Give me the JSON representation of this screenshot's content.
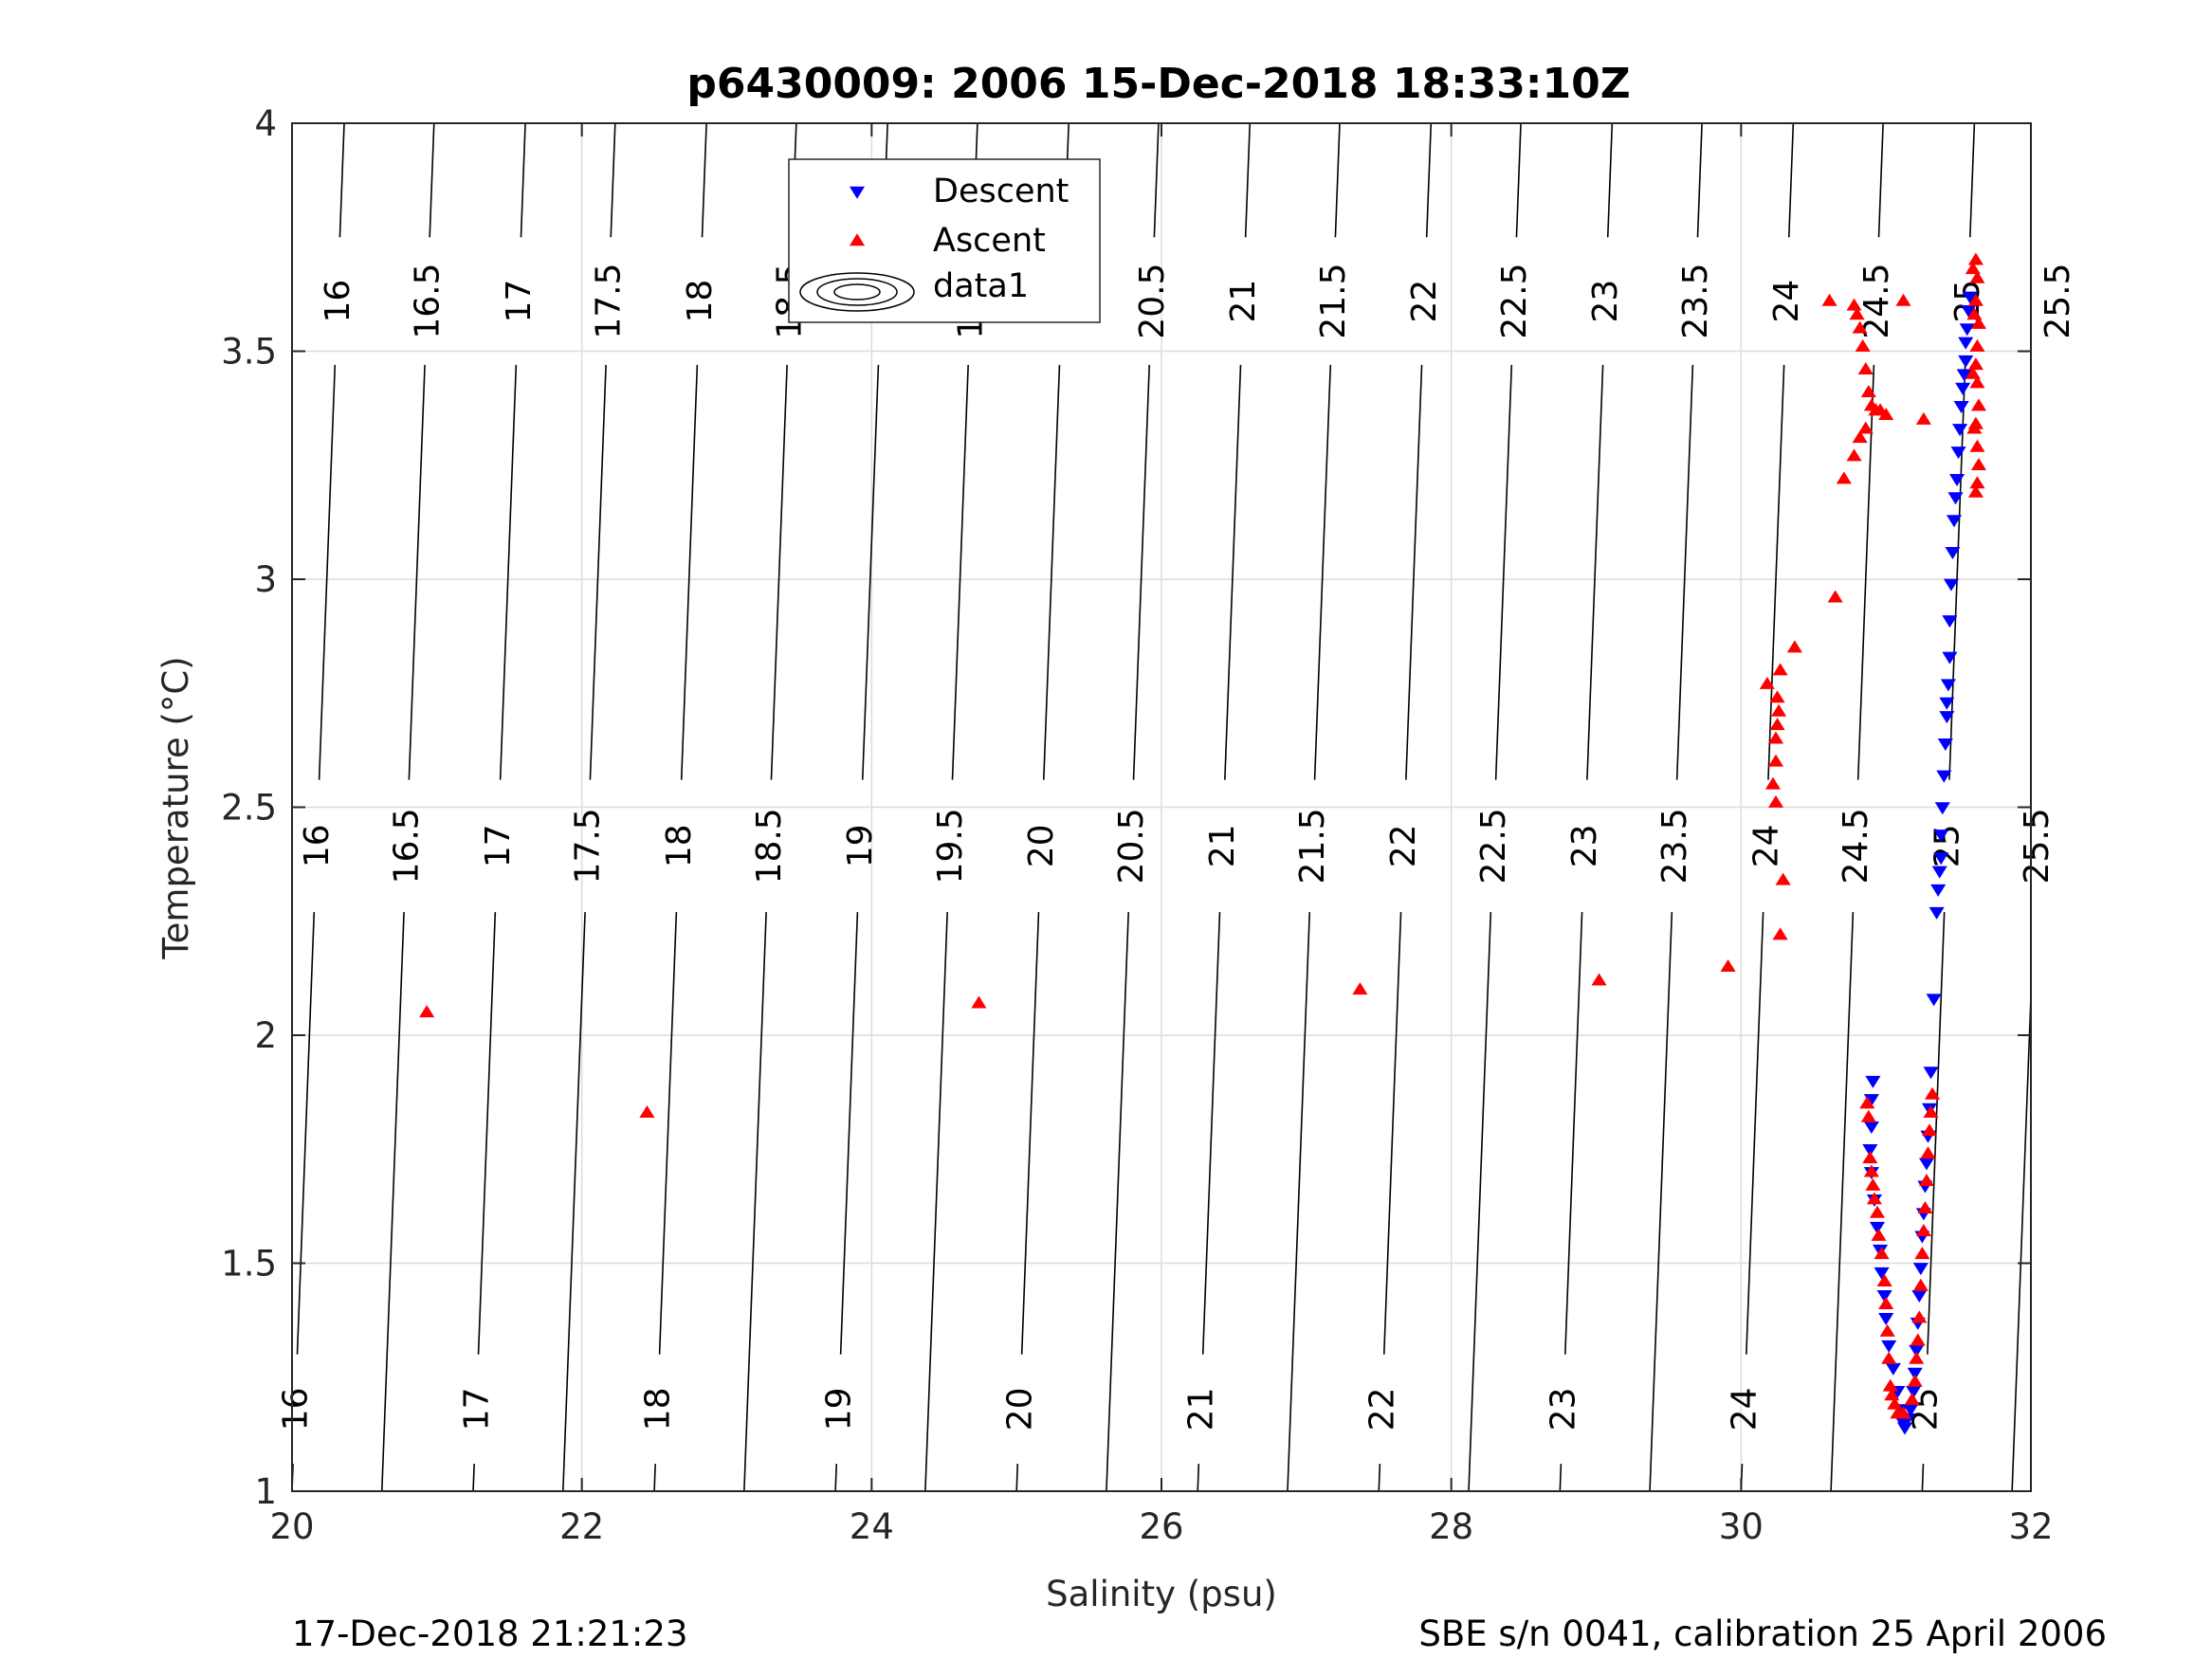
{
  "chart_data": {
    "type": "scatter",
    "title": "p6430009:  2006 15-Dec-2018 18:33:10Z",
    "xlabel": "Salinity (psu)",
    "ylabel": "Temperature (°C)",
    "xlim": [
      20,
      32
    ],
    "ylim": [
      1,
      4
    ],
    "xticks": [
      "20",
      "22",
      "24",
      "26",
      "28",
      "30",
      "32"
    ],
    "yticks": [
      "1",
      "1.5",
      "2",
      "2.5",
      "3",
      "3.5",
      "4"
    ],
    "grid": true,
    "legend_position": "top-center",
    "legend": [
      {
        "label": "Descent",
        "color": "#0000ff",
        "marker": "triangle-down"
      },
      {
        "label": "Ascent",
        "color": "#ff0000",
        "marker": "triangle-up"
      },
      {
        "label": "data1",
        "color": "#000000",
        "marker": "contour"
      }
    ],
    "density_contours": {
      "labels": [
        "16",
        "16.5",
        "17",
        "17.5",
        "18",
        "18.5",
        "19",
        "19.5",
        "20",
        "20.5",
        "21",
        "21.5",
        "22",
        "22.5",
        "23",
        "23.5",
        "24",
        "24.5",
        "25",
        "25.5"
      ],
      "bottom_salinity": [
        20.0,
        20.62,
        21.25,
        21.87,
        22.5,
        23.12,
        23.75,
        24.37,
        25.0,
        25.62,
        26.25,
        26.87,
        27.5,
        28.12,
        28.75,
        29.37,
        30.0,
        30.62,
        31.25,
        31.87
      ],
      "slope_psu_per_degC": 0.12
    },
    "series": [
      {
        "name": "Descent",
        "color": "#0000ff",
        "marker": "triangle-down",
        "points": [
          [
            31.58,
            3.62
          ],
          [
            31.57,
            3.59
          ],
          [
            31.56,
            3.55
          ],
          [
            31.55,
            3.52
          ],
          [
            31.55,
            3.48
          ],
          [
            31.54,
            3.45
          ],
          [
            31.53,
            3.42
          ],
          [
            31.52,
            3.38
          ],
          [
            31.51,
            3.33
          ],
          [
            31.5,
            3.28
          ],
          [
            31.49,
            3.22
          ],
          [
            31.48,
            3.18
          ],
          [
            31.47,
            3.13
          ],
          [
            31.46,
            3.06
          ],
          [
            31.45,
            2.99
          ],
          [
            31.44,
            2.91
          ],
          [
            31.44,
            2.83
          ],
          [
            31.43,
            2.77
          ],
          [
            31.42,
            2.73
          ],
          [
            31.42,
            2.7
          ],
          [
            31.41,
            2.64
          ],
          [
            31.4,
            2.57
          ],
          [
            31.39,
            2.5
          ],
          [
            31.38,
            2.44
          ],
          [
            31.38,
            2.39
          ],
          [
            31.37,
            2.36
          ],
          [
            31.36,
            2.32
          ],
          [
            31.35,
            2.27
          ],
          [
            31.33,
            2.08
          ],
          [
            31.31,
            1.92
          ],
          [
            31.3,
            1.84
          ],
          [
            31.29,
            1.78
          ],
          [
            31.28,
            1.72
          ],
          [
            31.27,
            1.67
          ],
          [
            31.26,
            1.61
          ],
          [
            31.25,
            1.56
          ],
          [
            31.24,
            1.49
          ],
          [
            31.23,
            1.43
          ],
          [
            31.22,
            1.37
          ],
          [
            31.21,
            1.31
          ],
          [
            31.2,
            1.26
          ],
          [
            31.19,
            1.22
          ],
          [
            31.17,
            1.18
          ],
          [
            31.15,
            1.16
          ],
          [
            31.13,
            1.14
          ],
          [
            31.12,
            1.15
          ],
          [
            31.1,
            1.18
          ],
          [
            31.08,
            1.22
          ],
          [
            31.05,
            1.27
          ],
          [
            31.02,
            1.32
          ],
          [
            31.0,
            1.38
          ],
          [
            30.99,
            1.43
          ],
          [
            30.97,
            1.48
          ],
          [
            30.96,
            1.53
          ],
          [
            30.94,
            1.58
          ],
          [
            30.92,
            1.64
          ],
          [
            30.9,
            1.7
          ],
          [
            30.89,
            1.75
          ],
          [
            30.9,
            1.8
          ],
          [
            30.9,
            1.86
          ],
          [
            30.91,
            1.9
          ]
        ]
      },
      {
        "name": "Ascent",
        "color": "#ff0000",
        "marker": "triangle-up",
        "points": [
          [
            31.62,
            3.7
          ],
          [
            31.63,
            3.66
          ],
          [
            31.62,
            3.61
          ],
          [
            31.64,
            3.56
          ],
          [
            31.63,
            3.51
          ],
          [
            31.62,
            3.47
          ],
          [
            31.63,
            3.43
          ],
          [
            31.64,
            3.38
          ],
          [
            31.62,
            3.34
          ],
          [
            31.63,
            3.29
          ],
          [
            31.64,
            3.25
          ],
          [
            31.63,
            3.21
          ],
          [
            31.62,
            3.19
          ],
          [
            31.6,
            3.68
          ],
          [
            31.61,
            3.58
          ],
          [
            31.6,
            3.45
          ],
          [
            31.61,
            3.33
          ],
          [
            30.78,
            3.6
          ],
          [
            30.8,
            3.58
          ],
          [
            30.82,
            3.55
          ],
          [
            30.84,
            3.51
          ],
          [
            30.86,
            3.46
          ],
          [
            30.88,
            3.41
          ],
          [
            30.9,
            3.38
          ],
          [
            30.93,
            3.37
          ],
          [
            30.96,
            3.37
          ],
          [
            31.0,
            3.36
          ],
          [
            30.86,
            3.33
          ],
          [
            30.82,
            3.31
          ],
          [
            30.78,
            3.27
          ],
          [
            30.71,
            3.22
          ],
          [
            30.61,
            3.61
          ],
          [
            31.12,
            3.61
          ],
          [
            31.26,
            3.35
          ],
          [
            30.65,
            2.96
          ],
          [
            30.37,
            2.85
          ],
          [
            30.27,
            2.8
          ],
          [
            30.18,
            2.77
          ],
          [
            30.25,
            2.74
          ],
          [
            30.26,
            2.71
          ],
          [
            30.25,
            2.68
          ],
          [
            30.24,
            2.65
          ],
          [
            30.24,
            2.6
          ],
          [
            30.22,
            2.55
          ],
          [
            30.24,
            2.51
          ],
          [
            30.29,
            2.34
          ],
          [
            30.27,
            2.22
          ],
          [
            20.93,
            2.05
          ],
          [
            22.45,
            1.83
          ],
          [
            24.74,
            2.07
          ],
          [
            27.37,
            2.1
          ],
          [
            29.02,
            2.12
          ],
          [
            29.91,
            2.15
          ],
          [
            30.87,
            1.85
          ],
          [
            30.88,
            1.82
          ],
          [
            30.89,
            1.73
          ],
          [
            30.9,
            1.7
          ],
          [
            30.91,
            1.67
          ],
          [
            30.92,
            1.64
          ],
          [
            30.94,
            1.61
          ],
          [
            30.95,
            1.56
          ],
          [
            30.97,
            1.52
          ],
          [
            30.99,
            1.46
          ],
          [
            31.0,
            1.41
          ],
          [
            31.01,
            1.35
          ],
          [
            31.02,
            1.29
          ],
          [
            31.03,
            1.23
          ],
          [
            31.04,
            1.21
          ],
          [
            31.06,
            1.19
          ],
          [
            31.08,
            1.17
          ],
          [
            31.12,
            1.17
          ],
          [
            31.18,
            1.2
          ],
          [
            31.2,
            1.24
          ],
          [
            31.21,
            1.29
          ],
          [
            31.22,
            1.33
          ],
          [
            31.23,
            1.38
          ],
          [
            31.24,
            1.45
          ],
          [
            31.25,
            1.52
          ],
          [
            31.26,
            1.57
          ],
          [
            31.27,
            1.62
          ],
          [
            31.28,
            1.68
          ],
          [
            31.29,
            1.74
          ],
          [
            31.3,
            1.79
          ],
          [
            31.31,
            1.83
          ],
          [
            31.32,
            1.87
          ]
        ]
      }
    ]
  },
  "footer": {
    "left": "17-Dec-2018 21:21:23",
    "right": "SBE s/n 0041, calibration 25 April 2006"
  }
}
